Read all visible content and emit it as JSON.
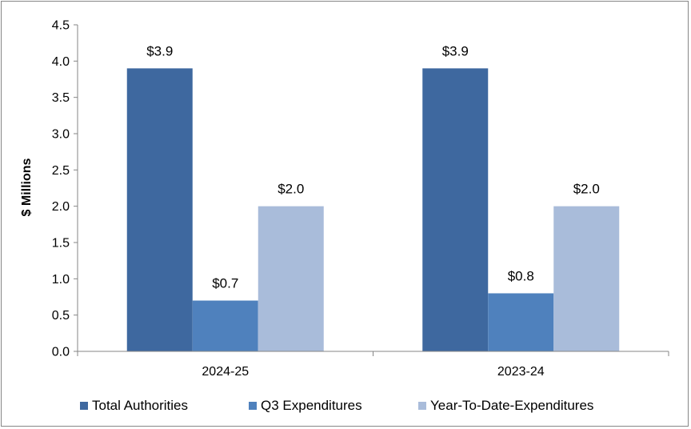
{
  "chart_data": {
    "type": "bar",
    "title": "",
    "xlabel": "",
    "ylabel": "$ Millions",
    "ylim": [
      0,
      4.5
    ],
    "yticks": [
      "0.0",
      "0.5",
      "1.0",
      "1.5",
      "2.0",
      "2.5",
      "3.0",
      "3.5",
      "4.0",
      "4.5"
    ],
    "grid": false,
    "legend_position": "bottom",
    "categories": [
      "2024-25",
      "2023-24"
    ],
    "series": [
      {
        "name": "Total Authorities",
        "values": [
          3.9,
          3.9
        ],
        "labels": [
          "$3.9",
          "$3.9"
        ],
        "color": "#3E689F"
      },
      {
        "name": "Q3 Expenditures",
        "values": [
          0.7,
          0.8
        ],
        "labels": [
          "$0.7",
          "$0.8"
        ],
        "color": "#4F81BD"
      },
      {
        "name": "Year-To-Date-Expenditures",
        "values": [
          2.0,
          2.0
        ],
        "labels": [
          "$2.0",
          "$2.0"
        ],
        "color": "#A9BCDA"
      }
    ]
  }
}
